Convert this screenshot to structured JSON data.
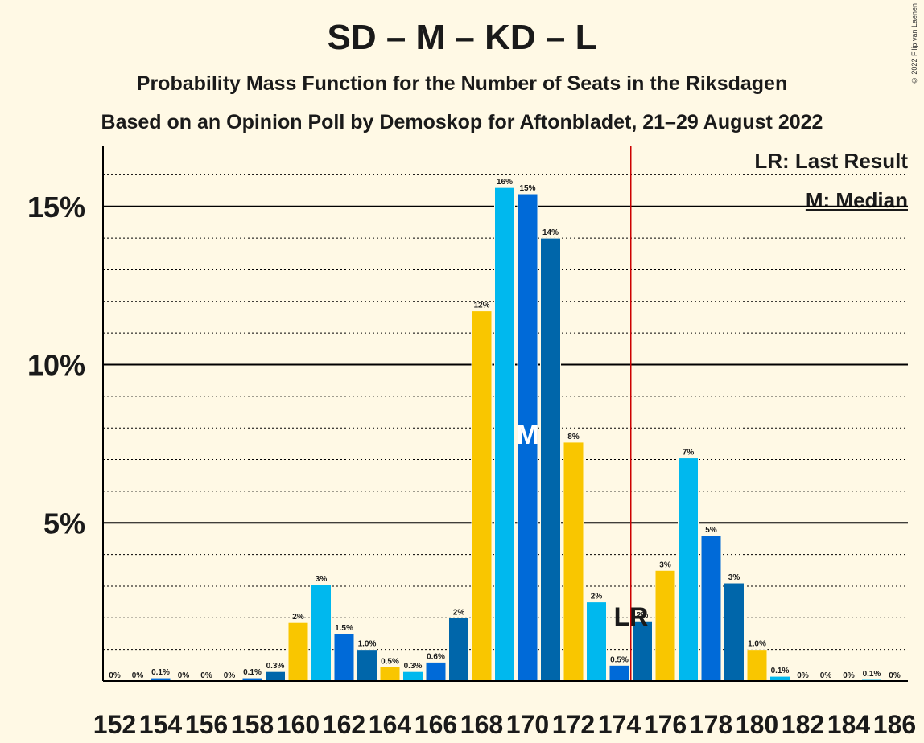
{
  "title": "SD – M – KD – L",
  "subtitle1": "Probability Mass Function for the Number of Seats in the Riksdagen",
  "subtitle2": "Based on an Opinion Poll by Demoskop for Aftonbladet, 21–29 August 2022",
  "copyright": "© 2022 Filip van Laenen",
  "legend": {
    "last_result": "LR: Last Result",
    "median": "M: Median"
  },
  "colors": [
    "#F9C600",
    "#00B8EE",
    "#006AD8",
    "#0066AA"
  ],
  "chart_data": {
    "type": "bar",
    "x": [
      152,
      153,
      154,
      155,
      156,
      157,
      158,
      159,
      160,
      161,
      162,
      163,
      164,
      165,
      166,
      167,
      168,
      169,
      170,
      171,
      172,
      173,
      174,
      175,
      176,
      177,
      178,
      179,
      180,
      181,
      182,
      183,
      184,
      185,
      186
    ],
    "values": [
      0,
      0,
      0.1,
      0,
      0,
      0,
      0.1,
      0.3,
      1.85,
      3.05,
      1.5,
      1.0,
      0.45,
      0.3,
      0.6,
      2.0,
      11.7,
      15.6,
      15.4,
      14.0,
      7.55,
      2.5,
      0.5,
      1.9,
      3.5,
      7.05,
      4.6,
      3.1,
      1.0,
      0.15,
      0,
      0,
      0,
      0.05,
      0
    ],
    "labels": [
      "0%",
      "0%",
      "0.1%",
      "0%",
      "0%",
      "0%",
      "0.1%",
      "0.3%",
      "2%",
      "3%",
      "1.5%",
      "1.0%",
      "0.5%",
      "0.3%",
      "0.6%",
      "2%",
      "12%",
      "16%",
      "15%",
      "14%",
      "8%",
      "2%",
      "0.5%",
      "2%",
      "3%",
      "7%",
      "5%",
      "3%",
      "1.0%",
      "0.1%",
      "0%",
      "0%",
      "0%",
      "0.1%",
      "0%"
    ],
    "x_tick_labels": [
      "152",
      "154",
      "156",
      "158",
      "160",
      "162",
      "164",
      "166",
      "168",
      "170",
      "172",
      "174",
      "176",
      "178",
      "180",
      "182",
      "184",
      "186"
    ],
    "y_ticks": [
      5,
      10,
      15
    ],
    "y_tick_labels": [
      "5%",
      "10%",
      "15%"
    ],
    "ylim": [
      0,
      16.9
    ],
    "median": 170,
    "median_label": "M",
    "last_result": 175,
    "last_result_label": "LR",
    "majority_line": 174.5
  }
}
